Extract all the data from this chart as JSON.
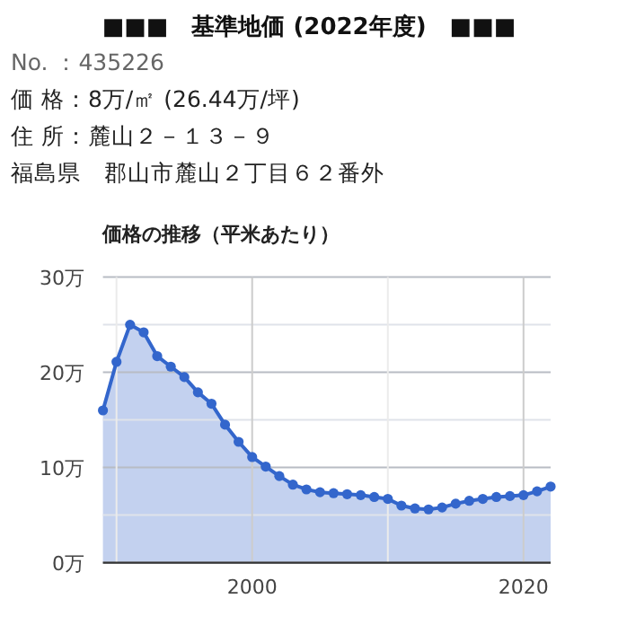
{
  "chart_data": {
    "type": "area",
    "title": "■■■　基準地価 (2022年度)　■■■",
    "subtitle": "価格の推移（平米あたり）",
    "annotations": [
      "No. ：435226",
      "価 格：8万/㎡ (26.44万/坪)",
      "住 所：麓山２－１３－９",
      "福島県　郡山市麓山２丁目６２番外"
    ],
    "x": [
      1989,
      1990,
      1991,
      1992,
      1993,
      1994,
      1995,
      1996,
      1997,
      1998,
      1999,
      2000,
      2001,
      2002,
      2003,
      2004,
      2005,
      2006,
      2007,
      2008,
      2009,
      2010,
      2011,
      2012,
      2013,
      2014,
      2015,
      2016,
      2017,
      2018,
      2019,
      2020,
      2021,
      2022
    ],
    "series": [
      {
        "color": "#3366cc",
        "values": [
          16.0,
          21.1,
          25.0,
          24.2,
          21.7,
          20.6,
          19.5,
          17.9,
          16.7,
          14.5,
          12.7,
          11.1,
          10.1,
          9.1,
          8.2,
          7.7,
          7.4,
          7.3,
          7.2,
          7.1,
          6.9,
          6.7,
          6.0,
          5.7,
          5.6,
          5.8,
          6.2,
          6.5,
          6.7,
          6.9,
          7.0,
          7.1,
          7.5,
          8.0
        ]
      }
    ],
    "xlim": [
      1989,
      2022
    ],
    "xticks": [
      {
        "value": 1990,
        "label": null
      },
      2000,
      {
        "value": 2010,
        "label": null
      },
      2020
    ],
    "ylim": [
      0,
      30
    ],
    "yticks": [
      {
        "value": 0,
        "label": "0万"
      },
      {
        "value": 5,
        "label": null
      },
      {
        "value": 10,
        "label": "10万"
      },
      {
        "value": 15,
        "label": null
      },
      {
        "value": 20,
        "label": "20万"
      },
      {
        "value": 25,
        "label": null
      },
      {
        "value": 30,
        "label": "30万"
      }
    ],
    "grid": true,
    "marker": "circle"
  }
}
